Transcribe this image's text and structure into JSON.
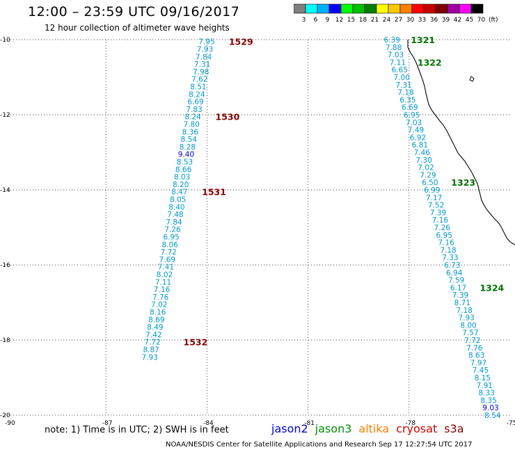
{
  "header": {
    "title": "12:00 – 23:59 UTC 09/16/2017",
    "subtitle": "12 hour collection of altimeter wave heights"
  },
  "colorbar": {
    "unit": "(ft)",
    "bins": [
      {
        "label": "3",
        "color": "#808080"
      },
      {
        "label": "6",
        "color": "#00ffff"
      },
      {
        "label": "9",
        "color": "#00b0ff"
      },
      {
        "label": "12",
        "color": "#0000ff"
      },
      {
        "label": "15",
        "color": "#00ff00"
      },
      {
        "label": "18",
        "color": "#00c000"
      },
      {
        "label": "21",
        "color": "#008000"
      },
      {
        "label": "24",
        "color": "#ffff00"
      },
      {
        "label": "27",
        "color": "#ffc800"
      },
      {
        "label": "30",
        "color": "#ff8000"
      },
      {
        "label": "33",
        "color": "#ff0000"
      },
      {
        "label": "36",
        "color": "#c80000"
      },
      {
        "label": "39",
        "color": "#800000"
      },
      {
        "label": "42",
        "color": "#a000a0"
      },
      {
        "label": "45",
        "color": "#ff00ff"
      },
      {
        "label": "70",
        "color": "#000000"
      }
    ]
  },
  "map": {
    "lon_range": [
      -90,
      -75
    ],
    "lat_range": [
      -20,
      -10
    ],
    "lon_ticks": [
      "-90",
      "-87",
      "-84",
      "-81",
      "-78",
      "-75"
    ],
    "lat_ticks": [
      "-10",
      "-12",
      "-14",
      "-16",
      "-18",
      "-20"
    ],
    "grid": "dotted",
    "colors": {
      "light": "#0099cc",
      "medium": "#0000cc",
      "time_west": "#800000",
      "time_east": "#007000"
    }
  },
  "tracks": [
    {
      "id": "west",
      "time_color": "time_west",
      "points": [
        {
          "lon": -84.25,
          "lat": -10.05,
          "v": "7.95"
        },
        {
          "lon": -84.3,
          "lat": -10.25,
          "v": "7.93"
        },
        {
          "lon": -84.34,
          "lat": -10.45,
          "v": "7.84"
        },
        {
          "lon": -84.38,
          "lat": -10.65,
          "v": "7.31"
        },
        {
          "lon": -84.42,
          "lat": -10.85,
          "v": "7.98"
        },
        {
          "lon": -84.46,
          "lat": -11.05,
          "v": "7.62"
        },
        {
          "lon": -84.5,
          "lat": -11.25,
          "v": "8.51"
        },
        {
          "lon": -84.54,
          "lat": -11.45,
          "v": "8.24"
        },
        {
          "lon": -84.58,
          "lat": -11.65,
          "v": "6.69"
        },
        {
          "lon": -84.62,
          "lat": -11.85,
          "v": "7.83"
        },
        {
          "lon": -84.66,
          "lat": -12.05,
          "v": "8.24"
        },
        {
          "lon": -84.7,
          "lat": -12.25,
          "v": "7.80"
        },
        {
          "lon": -84.74,
          "lat": -12.45,
          "v": "8.36"
        },
        {
          "lon": -84.78,
          "lat": -12.65,
          "v": "8.54"
        },
        {
          "lon": -84.82,
          "lat": -12.85,
          "v": "8.28"
        },
        {
          "lon": -84.86,
          "lat": -13.05,
          "v": "9.40",
          "c": "medium"
        },
        {
          "lon": -84.9,
          "lat": -13.25,
          "v": "8.53"
        },
        {
          "lon": -84.94,
          "lat": -13.45,
          "v": "8.66"
        },
        {
          "lon": -84.98,
          "lat": -13.65,
          "v": "8.03"
        },
        {
          "lon": -85.02,
          "lat": -13.85,
          "v": "8.20"
        },
        {
          "lon": -85.06,
          "lat": -14.05,
          "v": "8.47"
        },
        {
          "lon": -85.1,
          "lat": -14.25,
          "v": "8.05"
        },
        {
          "lon": -85.14,
          "lat": -14.45,
          "v": "8.40"
        },
        {
          "lon": -85.18,
          "lat": -14.65,
          "v": "7.48"
        },
        {
          "lon": -85.22,
          "lat": -14.85,
          "v": "7.84"
        },
        {
          "lon": -85.26,
          "lat": -15.05,
          "v": "7.26"
        },
        {
          "lon": -85.3,
          "lat": -15.25,
          "v": "6.95"
        },
        {
          "lon": -85.34,
          "lat": -15.45,
          "v": "8.06"
        },
        {
          "lon": -85.38,
          "lat": -15.65,
          "v": "7.72"
        },
        {
          "lon": -85.42,
          "lat": -15.85,
          "v": "7.69"
        },
        {
          "lon": -85.46,
          "lat": -16.05,
          "v": "7.41"
        },
        {
          "lon": -85.5,
          "lat": -16.25,
          "v": "8.02"
        },
        {
          "lon": -85.54,
          "lat": -16.45,
          "v": "7.11"
        },
        {
          "lon": -85.58,
          "lat": -16.65,
          "v": "7.16"
        },
        {
          "lon": -85.62,
          "lat": -16.85,
          "v": "7.76"
        },
        {
          "lon": -85.66,
          "lat": -17.05,
          "v": "7.02"
        },
        {
          "lon": -85.7,
          "lat": -17.25,
          "v": "8.16"
        },
        {
          "lon": -85.74,
          "lat": -17.45,
          "v": "8.69"
        },
        {
          "lon": -85.78,
          "lat": -17.65,
          "v": "8.49"
        },
        {
          "lon": -85.82,
          "lat": -17.85,
          "v": "7.42"
        },
        {
          "lon": -85.86,
          "lat": -18.05,
          "v": "7.72"
        },
        {
          "lon": -85.9,
          "lat": -18.25,
          "v": "8.87"
        },
        {
          "lon": -85.94,
          "lat": -18.45,
          "v": "7.93"
        }
      ],
      "times": [
        {
          "lon": -83.35,
          "lat": -10.05,
          "t": "1529"
        },
        {
          "lon": -83.75,
          "lat": -12.05,
          "t": "1530"
        },
        {
          "lon": -84.15,
          "lat": -14.05,
          "t": "1531"
        },
        {
          "lon": -84.7,
          "lat": -18.05,
          "t": "1532"
        }
      ]
    },
    {
      "id": "east",
      "time_color": "time_east",
      "points": [
        {
          "lon": -78.75,
          "lat": -10.0,
          "v": "6.39"
        },
        {
          "lon": -78.7,
          "lat": -10.2,
          "v": "7.88"
        },
        {
          "lon": -78.64,
          "lat": -10.4,
          "v": "7.03"
        },
        {
          "lon": -78.58,
          "lat": -10.6,
          "v": "7.11"
        },
        {
          "lon": -78.52,
          "lat": -10.8,
          "v": "6.65"
        },
        {
          "lon": -78.46,
          "lat": -11.0,
          "v": "7.00"
        },
        {
          "lon": -78.4,
          "lat": -11.2,
          "v": "7.31"
        },
        {
          "lon": -78.34,
          "lat": -11.4,
          "v": "7.18"
        },
        {
          "lon": -78.28,
          "lat": -11.6,
          "v": "6.35"
        },
        {
          "lon": -78.22,
          "lat": -11.8,
          "v": "6.69"
        },
        {
          "lon": -78.16,
          "lat": -12.0,
          "v": "6.95"
        },
        {
          "lon": -78.1,
          "lat": -12.2,
          "v": "7.03"
        },
        {
          "lon": -78.04,
          "lat": -12.4,
          "v": "7.49"
        },
        {
          "lon": -77.98,
          "lat": -12.6,
          "v": "6.92"
        },
        {
          "lon": -77.92,
          "lat": -12.8,
          "v": "6.81"
        },
        {
          "lon": -77.86,
          "lat": -13.0,
          "v": "7.46"
        },
        {
          "lon": -77.8,
          "lat": -13.2,
          "v": "7.30"
        },
        {
          "lon": -77.74,
          "lat": -13.4,
          "v": "7.02"
        },
        {
          "lon": -77.68,
          "lat": -13.6,
          "v": "7.29"
        },
        {
          "lon": -77.62,
          "lat": -13.8,
          "v": "6.50"
        },
        {
          "lon": -77.56,
          "lat": -14.0,
          "v": "6.99"
        },
        {
          "lon": -77.5,
          "lat": -14.2,
          "v": "7.17"
        },
        {
          "lon": -77.44,
          "lat": -14.4,
          "v": "7.52"
        },
        {
          "lon": -77.38,
          "lat": -14.6,
          "v": "7.39"
        },
        {
          "lon": -77.32,
          "lat": -14.8,
          "v": "7.16"
        },
        {
          "lon": -77.26,
          "lat": -15.0,
          "v": "7.26"
        },
        {
          "lon": -77.2,
          "lat": -15.2,
          "v": "6.95"
        },
        {
          "lon": -77.14,
          "lat": -15.4,
          "v": "7.16"
        },
        {
          "lon": -77.08,
          "lat": -15.6,
          "v": "7.18"
        },
        {
          "lon": -77.02,
          "lat": -15.8,
          "v": "7.33"
        },
        {
          "lon": -76.96,
          "lat": -16.0,
          "v": "6.73"
        },
        {
          "lon": -76.9,
          "lat": -16.2,
          "v": "6.94"
        },
        {
          "lon": -76.84,
          "lat": -16.4,
          "v": "7.59"
        },
        {
          "lon": -76.78,
          "lat": -16.6,
          "v": "6.17"
        },
        {
          "lon": -76.72,
          "lat": -16.8,
          "v": "7.39"
        },
        {
          "lon": -76.66,
          "lat": -17.0,
          "v": "8.71"
        },
        {
          "lon": -76.6,
          "lat": -17.2,
          "v": "7.18"
        },
        {
          "lon": -76.54,
          "lat": -17.4,
          "v": "7.93"
        },
        {
          "lon": -76.48,
          "lat": -17.6,
          "v": "8.00"
        },
        {
          "lon": -76.42,
          "lat": -17.8,
          "v": "7.57"
        },
        {
          "lon": -76.36,
          "lat": -18.0,
          "v": "7.72"
        },
        {
          "lon": -76.3,
          "lat": -18.2,
          "v": "7.76"
        },
        {
          "lon": -76.24,
          "lat": -18.4,
          "v": "8.63"
        },
        {
          "lon": -76.18,
          "lat": -18.6,
          "v": "7.97"
        },
        {
          "lon": -76.12,
          "lat": -18.8,
          "v": "7.45"
        },
        {
          "lon": -76.06,
          "lat": -19.0,
          "v": "8.15"
        },
        {
          "lon": -76.0,
          "lat": -19.2,
          "v": "7.91"
        },
        {
          "lon": -75.94,
          "lat": -19.4,
          "v": "8.33"
        },
        {
          "lon": -75.88,
          "lat": -19.6,
          "v": "8.35"
        },
        {
          "lon": -75.82,
          "lat": -19.8,
          "v": "9.03",
          "c": "medium"
        },
        {
          "lon": -75.76,
          "lat": -20.0,
          "v": "8.54"
        }
      ],
      "times": [
        {
          "lon": -77.95,
          "lat": -10.0,
          "t": "1321"
        },
        {
          "lon": -77.75,
          "lat": -10.6,
          "t": "1322"
        },
        {
          "lon": -76.75,
          "lat": -13.8,
          "t": "1323"
        },
        {
          "lon": -75.9,
          "lat": -16.6,
          "t": "1324"
        }
      ]
    }
  ],
  "footer": {
    "note": "note:  1) Time is in UTC;  2) SWH is in feet",
    "satellites": [
      {
        "name": "jason2",
        "color": "#0000cc"
      },
      {
        "name": "jason3",
        "color": "#009000"
      },
      {
        "name": "altika",
        "color": "#ff8000"
      },
      {
        "name": "cryosat",
        "color": "#cc0000"
      },
      {
        "name": "s3a",
        "color": "#800000"
      }
    ],
    "credit": "NOAA/NESDIS Center for Satellite Applications and Research     Sep 17 12:27:54 UTC 2017"
  }
}
